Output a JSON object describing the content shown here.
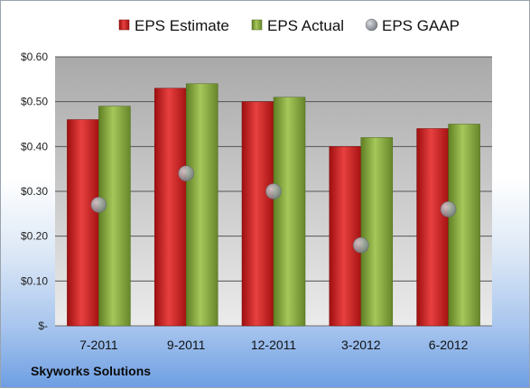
{
  "chart_data": {
    "type": "bar",
    "categories": [
      "7-2011",
      "9-2011",
      "12-2011",
      "3-2012",
      "6-2012"
    ],
    "series": [
      {
        "name": "EPS Estimate",
        "kind": "bar",
        "color": "#d42020",
        "values": [
          0.46,
          0.53,
          0.5,
          0.4,
          0.44
        ]
      },
      {
        "name": "EPS Actual",
        "kind": "bar",
        "color": "#8cae3c",
        "values": [
          0.49,
          0.54,
          0.51,
          0.42,
          0.45
        ]
      },
      {
        "name": "EPS GAAP",
        "kind": "marker",
        "color": "#9aa0a6",
        "values": [
          0.27,
          0.34,
          0.3,
          0.18,
          0.26
        ]
      }
    ],
    "ylim": [
      0,
      0.6
    ],
    "yticks": [
      0,
      0.1,
      0.2,
      0.3,
      0.4,
      0.5,
      0.6
    ],
    "ytick_labels": [
      "$-",
      "$0.10",
      "$0.20",
      "$0.30",
      "$0.40",
      "$0.50",
      "$0.60"
    ],
    "grid": true,
    "legend_position": "top"
  },
  "footer": {
    "company": "Skyworks Solutions"
  }
}
